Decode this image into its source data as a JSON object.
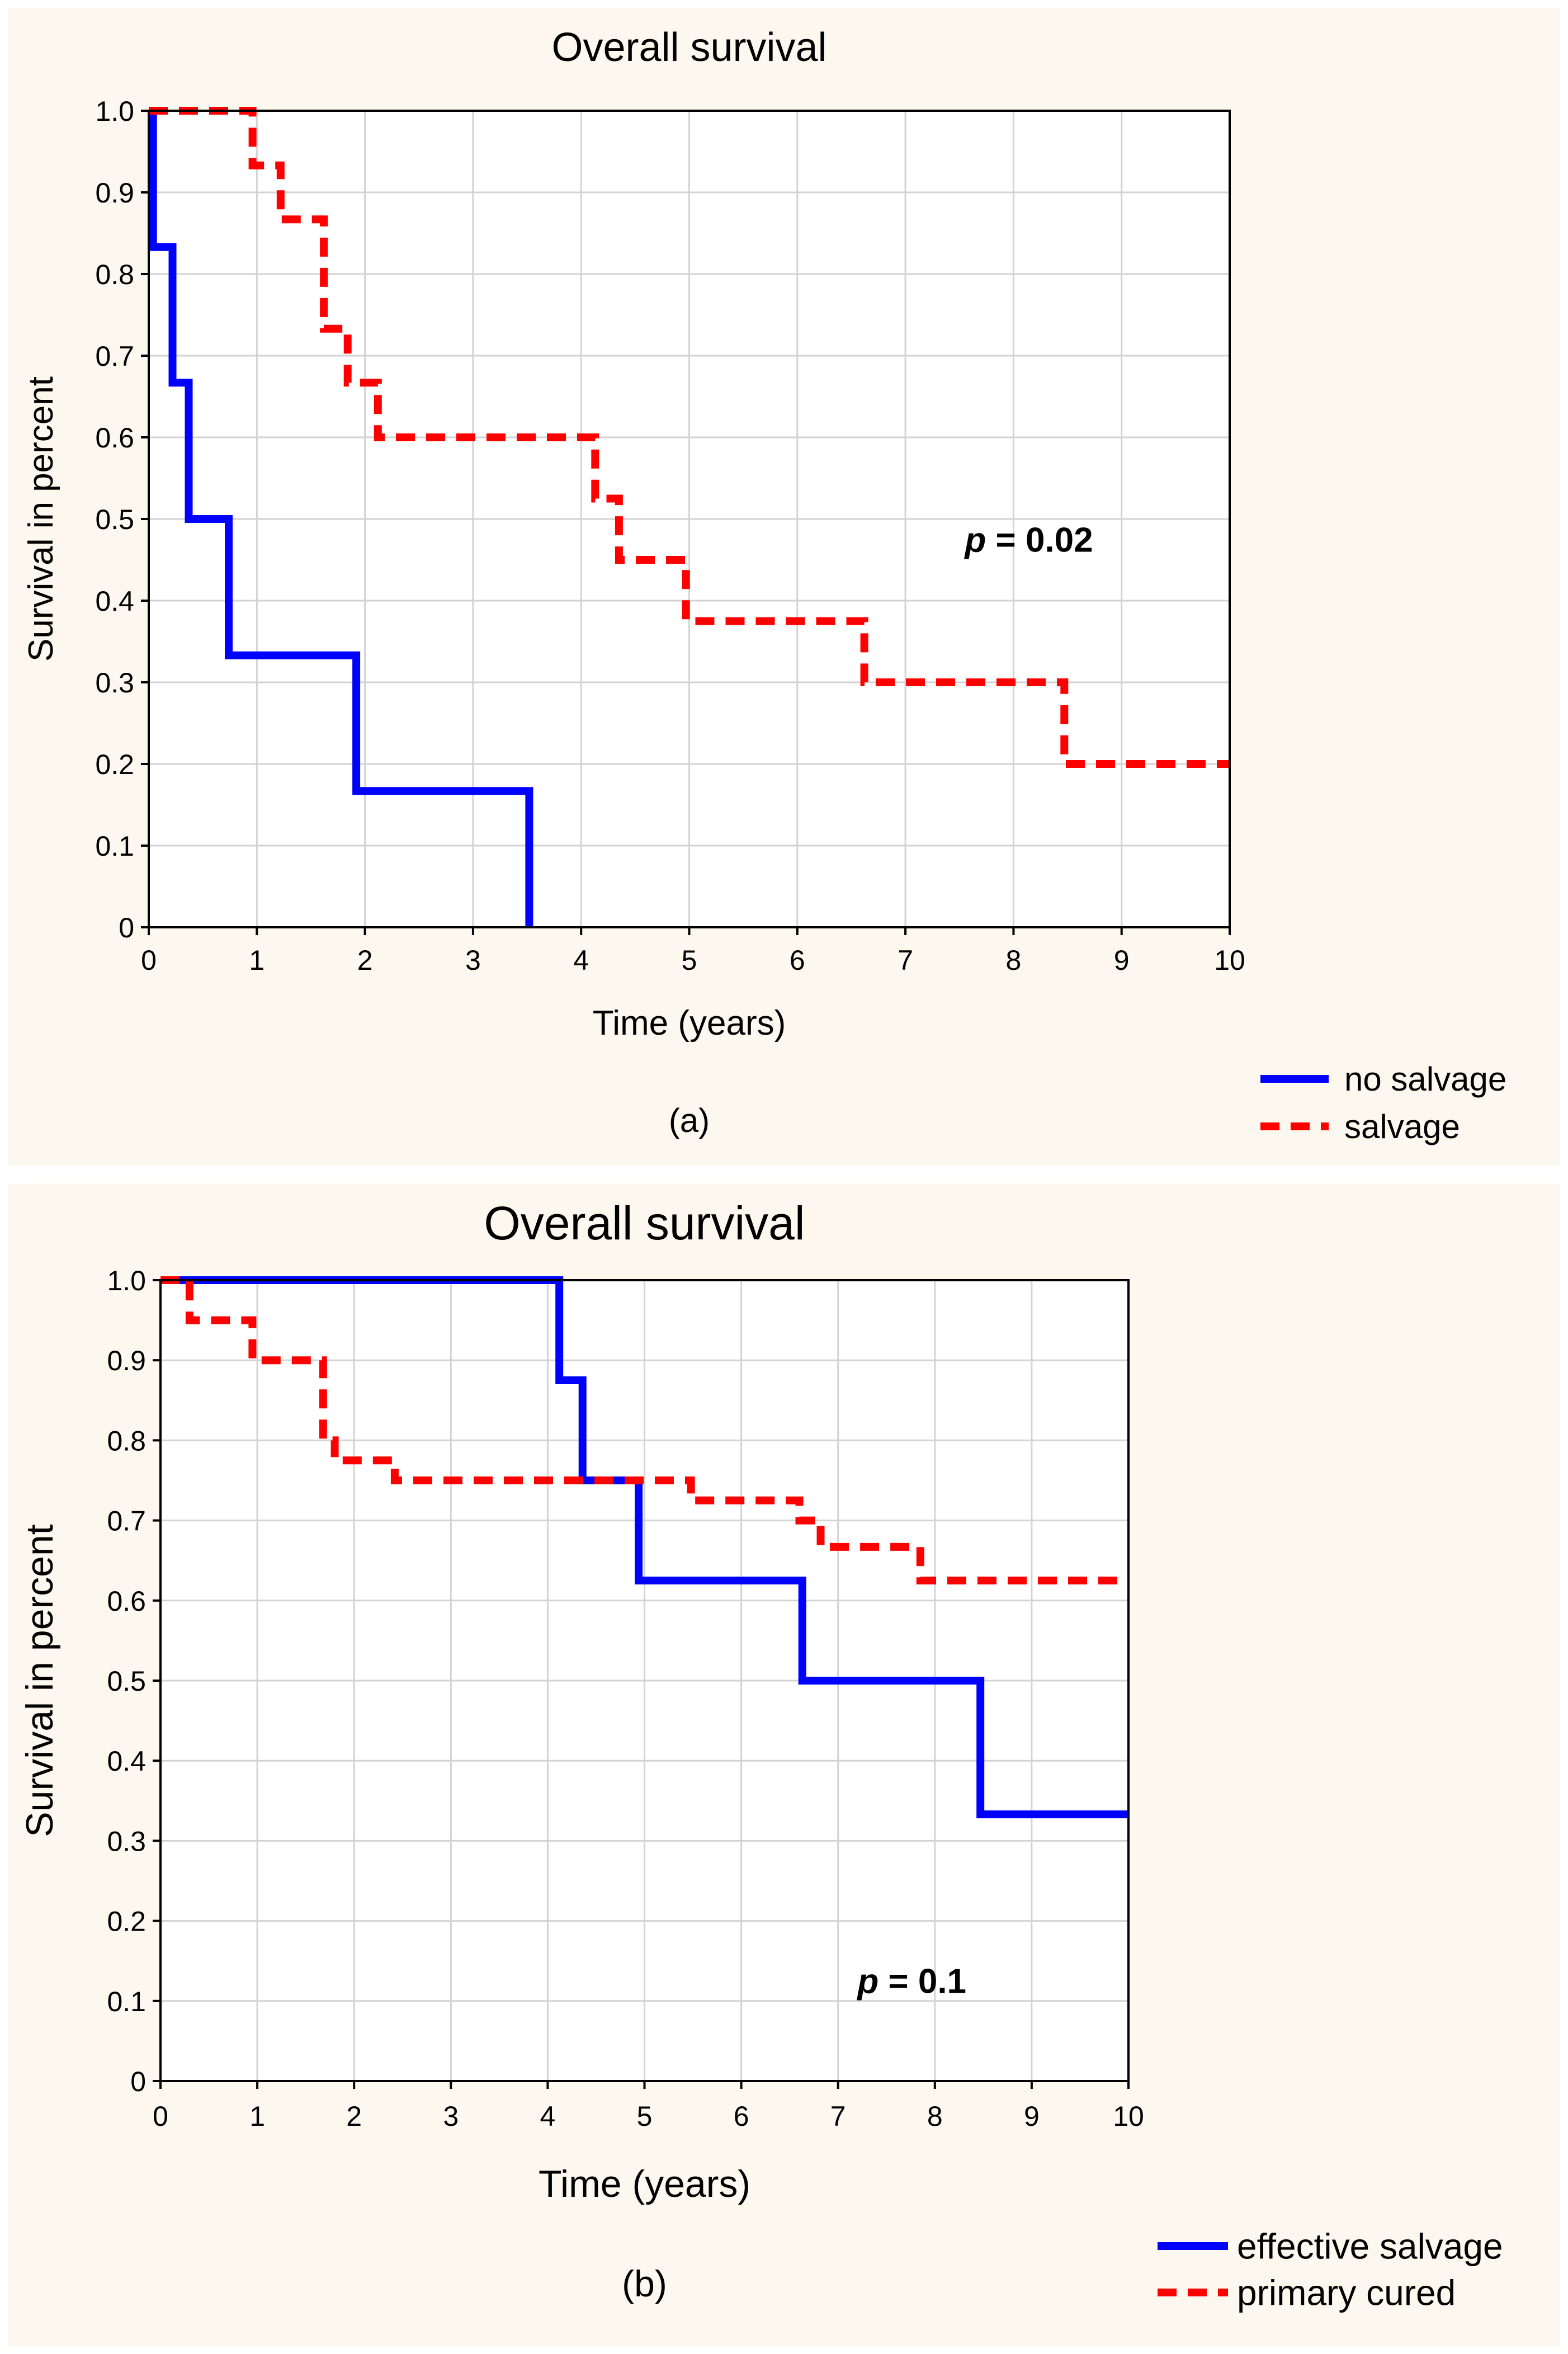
{
  "chart_data": [
    {
      "type": "line",
      "step": true,
      "title": "Overall survival",
      "xlabel": "Time (years)",
      "ylabel": "Survival in percent",
      "xlim": [
        0,
        10
      ],
      "ylim": [
        0,
        1
      ],
      "xticks": [
        "0",
        "1",
        "2",
        "3",
        "4",
        "5",
        "6",
        "7",
        "8",
        "9",
        "10"
      ],
      "yticks": [
        "0",
        "0.1",
        "0.2",
        "0.3",
        "0.4",
        "0.5",
        "0.6",
        "0.7",
        "0.8",
        "0.9",
        "1.0"
      ],
      "grid": true,
      "caption": "(a)",
      "annotation": {
        "italic": "p",
        "rest": " = 0.02",
        "x": 7.55,
        "y": 0.46
      },
      "legend_position": "bottom-right",
      "series": [
        {
          "name": "no salvage",
          "color": "#0000ff",
          "style": "solid",
          "points": [
            [
              0,
              1.0
            ],
            [
              0.04,
              1.0
            ],
            [
              0.04,
              0.833
            ],
            [
              0.22,
              0.833
            ],
            [
              0.22,
              0.667
            ],
            [
              0.37,
              0.667
            ],
            [
              0.37,
              0.5
            ],
            [
              0.74,
              0.5
            ],
            [
              0.74,
              0.333
            ],
            [
              1.92,
              0.333
            ],
            [
              1.92,
              0.167
            ],
            [
              3.52,
              0.167
            ],
            [
              3.52,
              0
            ]
          ]
        },
        {
          "name": "salvage",
          "color": "#ff0000",
          "style": "dashed",
          "points": [
            [
              0,
              1.0
            ],
            [
              0.96,
              1.0
            ],
            [
              0.96,
              0.933
            ],
            [
              1.22,
              0.933
            ],
            [
              1.22,
              0.867
            ],
            [
              1.62,
              0.867
            ],
            [
              1.62,
              0.733
            ],
            [
              1.84,
              0.733
            ],
            [
              1.84,
              0.667
            ],
            [
              2.12,
              0.667
            ],
            [
              2.12,
              0.6
            ],
            [
              4.13,
              0.6
            ],
            [
              4.13,
              0.525
            ],
            [
              4.35,
              0.525
            ],
            [
              4.35,
              0.45
            ],
            [
              4.97,
              0.45
            ],
            [
              4.97,
              0.375
            ],
            [
              6.62,
              0.375
            ],
            [
              6.62,
              0.3
            ],
            [
              8.47,
              0.3
            ],
            [
              8.47,
              0.2
            ],
            [
              10,
              0.2
            ]
          ]
        }
      ]
    },
    {
      "type": "line",
      "step": true,
      "title": "Overall survival",
      "xlabel": "Time (years)",
      "ylabel": "Survival in percent",
      "xlim": [
        0,
        10
      ],
      "ylim": [
        0,
        1
      ],
      "xticks": [
        "0",
        "1",
        "2",
        "3",
        "4",
        "5",
        "6",
        "7",
        "8",
        "9",
        "10"
      ],
      "yticks": [
        "0",
        "0.1",
        "0.2",
        "0.3",
        "0.4",
        "0.5",
        "0.6",
        "0.7",
        "0.8",
        "0.9",
        "1.0"
      ],
      "grid": true,
      "caption": "(b)",
      "annotation": {
        "italic": "p",
        "rest": " = 0.1",
        "x": 7.2,
        "y": 0.11
      },
      "legend_position": "bottom-right",
      "series": [
        {
          "name": "effective salvage",
          "color": "#0000ff",
          "style": "solid",
          "points": [
            [
              0,
              1.0
            ],
            [
              4.12,
              1.0
            ],
            [
              4.12,
              0.875
            ],
            [
              4.36,
              0.875
            ],
            [
              4.36,
              0.75
            ],
            [
              4.94,
              0.75
            ],
            [
              4.94,
              0.625
            ],
            [
              6.63,
              0.625
            ],
            [
              6.63,
              0.5
            ],
            [
              8.47,
              0.5
            ],
            [
              8.47,
              0.333
            ],
            [
              10,
              0.333
            ]
          ]
        },
        {
          "name": "primary cured",
          "color": "#ff0000",
          "style": "dashed",
          "points": [
            [
              0,
              1.0
            ],
            [
              0.3,
              1.0
            ],
            [
              0.3,
              0.95
            ],
            [
              0.95,
              0.95
            ],
            [
              0.95,
              0.9
            ],
            [
              1.68,
              0.9
            ],
            [
              1.68,
              0.8
            ],
            [
              1.8,
              0.8
            ],
            [
              1.8,
              0.775
            ],
            [
              2.42,
              0.775
            ],
            [
              2.42,
              0.75
            ],
            [
              5.48,
              0.75
            ],
            [
              5.48,
              0.725
            ],
            [
              6.6,
              0.725
            ],
            [
              6.6,
              0.7
            ],
            [
              6.82,
              0.7
            ],
            [
              6.82,
              0.667
            ],
            [
              7.85,
              0.667
            ],
            [
              7.85,
              0.625
            ],
            [
              10,
              0.625
            ]
          ]
        }
      ]
    }
  ]
}
